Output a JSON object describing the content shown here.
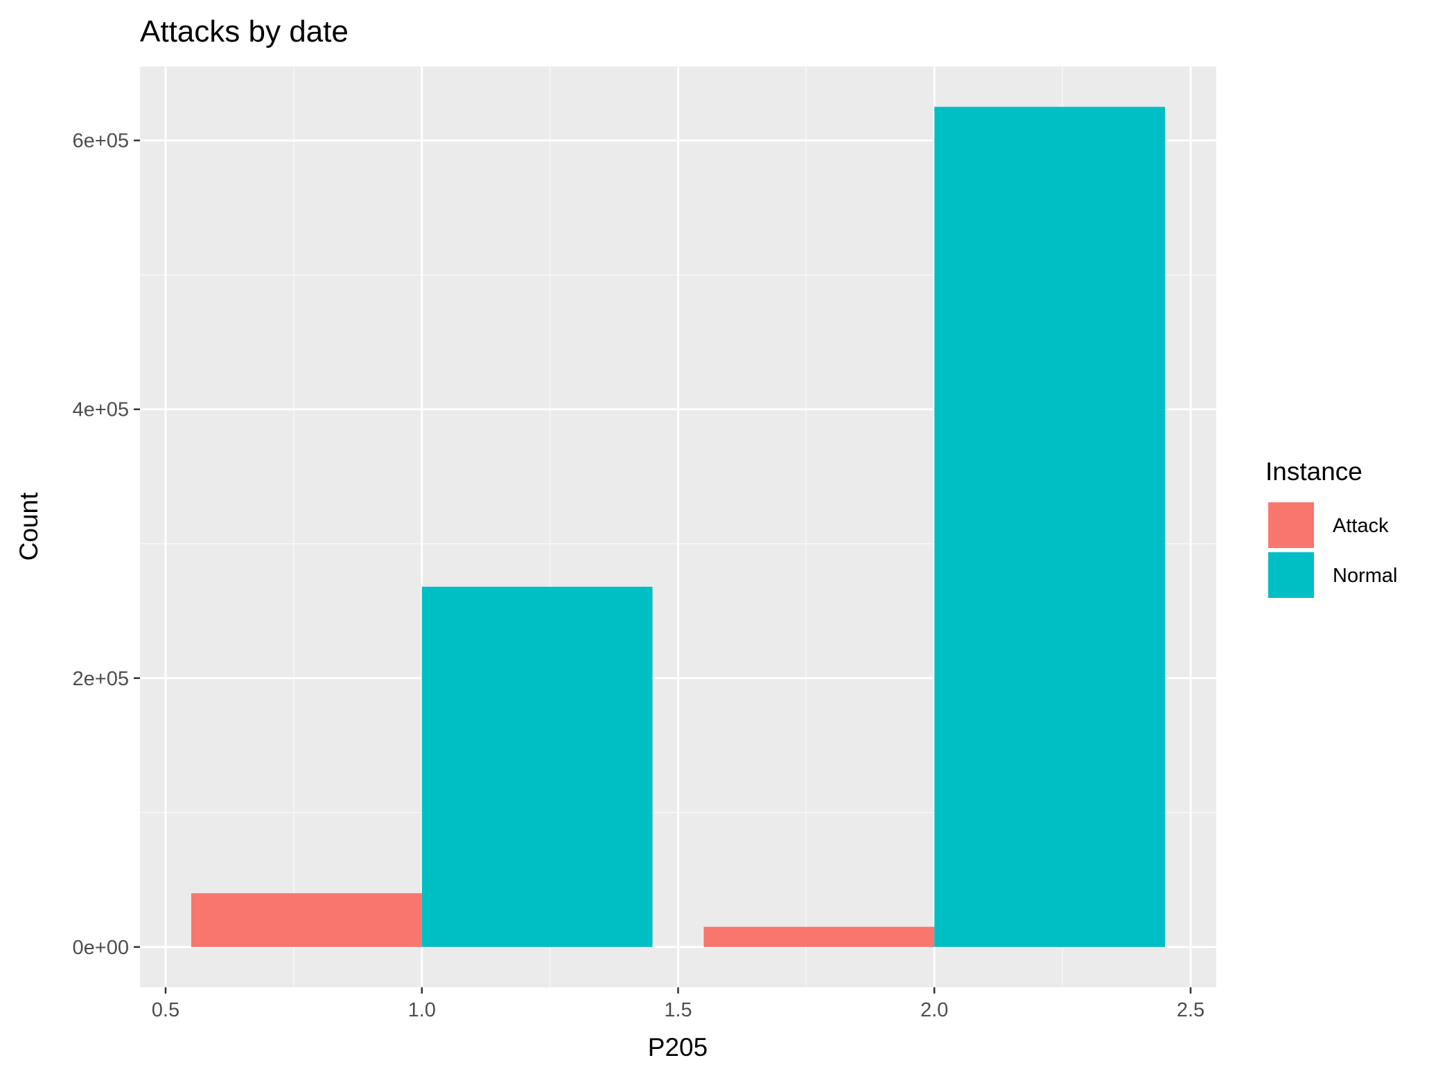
{
  "chart_data": {
    "type": "bar",
    "title": "Attacks by date",
    "xlabel": "P205",
    "ylabel": "Count",
    "xlim": [
      0.45,
      2.55
    ],
    "ylim": [
      -30000,
      655000
    ],
    "x_ticks": [
      0.5,
      1.0,
      1.5,
      2.0,
      2.5
    ],
    "x_tick_labels": [
      "0.5",
      "1.0",
      "1.5",
      "2.0",
      "2.5"
    ],
    "y_ticks": [
      0,
      200000,
      400000,
      600000
    ],
    "y_tick_labels": [
      "0e+00",
      "2e+05",
      "4e+05",
      "6e+05"
    ],
    "bar_width": 0.45,
    "grid": true,
    "legend": {
      "title": "Instance",
      "position": "right"
    },
    "series": [
      {
        "name": "Attack",
        "color": "#F8766D",
        "x": [
          1,
          2
        ],
        "values": [
          40000,
          15000
        ]
      },
      {
        "name": "Normal",
        "color": "#00BFC4",
        "x": [
          1,
          2
        ],
        "values": [
          268000,
          625000
        ]
      }
    ],
    "colors": {
      "panel_background": "#EBEBEB",
      "grid_major": "#FFFFFF",
      "grid_minor": "#F7F7F7",
      "tick_color": "#333333"
    }
  }
}
